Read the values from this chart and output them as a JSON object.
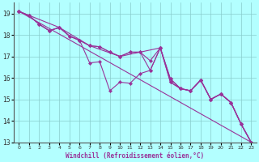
{
  "bg_color": "#b3ffff",
  "grid_color": "#88cccc",
  "line_color": "#993399",
  "xlim": [
    -0.5,
    23.5
  ],
  "ylim": [
    13.0,
    19.5
  ],
  "xticks": [
    0,
    1,
    2,
    3,
    4,
    5,
    6,
    7,
    8,
    9,
    10,
    11,
    12,
    13,
    14,
    15,
    16,
    17,
    18,
    19,
    20,
    21,
    22,
    23
  ],
  "yticks": [
    13,
    14,
    15,
    16,
    17,
    18,
    19
  ],
  "xlabel": "Windchill (Refroidissement éolien,°C)",
  "series": [
    {
      "x": [
        0,
        1,
        2,
        3,
        4,
        5,
        6,
        7,
        8,
        9,
        10,
        11,
        12,
        13,
        14,
        15,
        16,
        17,
        18,
        19,
        20,
        21,
        22,
        23
      ],
      "y": [
        19.1,
        18.9,
        18.5,
        18.2,
        18.35,
        17.95,
        17.75,
        16.7,
        16.75,
        15.4,
        15.8,
        15.75,
        16.2,
        16.35,
        17.4,
        15.95,
        15.5,
        15.4,
        15.9,
        15.0,
        15.25,
        14.85,
        13.85,
        13.0
      ]
    },
    {
      "x": [
        0,
        1,
        2,
        3,
        4,
        5,
        6,
        7,
        8,
        9,
        10,
        11,
        12,
        13,
        14,
        15,
        16,
        17,
        18,
        19,
        20,
        21,
        22,
        23
      ],
      "y": [
        19.1,
        18.9,
        18.5,
        18.2,
        18.35,
        17.95,
        17.75,
        17.5,
        17.45,
        17.2,
        17.0,
        17.2,
        17.2,
        16.35,
        17.4,
        15.95,
        15.5,
        15.4,
        15.9,
        15.0,
        15.25,
        14.85,
        13.85,
        13.0
      ]
    },
    {
      "x": [
        0,
        1,
        2,
        3,
        4,
        5,
        6,
        7,
        8,
        9,
        10,
        11,
        12,
        13,
        14,
        15,
        16,
        17,
        18,
        19,
        20,
        21,
        22,
        23
      ],
      "y": [
        19.1,
        18.9,
        18.5,
        18.2,
        18.35,
        17.95,
        17.75,
        17.5,
        17.45,
        17.2,
        17.0,
        17.2,
        17.2,
        16.8,
        17.4,
        15.8,
        15.5,
        15.4,
        15.9,
        15.0,
        15.25,
        14.85,
        13.85,
        13.0
      ]
    },
    {
      "x": [
        0,
        23
      ],
      "y": [
        19.1,
        13.0
      ]
    },
    {
      "x": [
        0,
        4,
        7,
        10,
        14,
        15,
        16,
        17,
        18,
        19,
        20,
        21,
        22,
        23
      ],
      "y": [
        19.1,
        18.35,
        17.5,
        17.0,
        17.4,
        15.8,
        15.5,
        15.4,
        15.9,
        15.0,
        15.25,
        14.85,
        13.85,
        13.0
      ]
    }
  ]
}
